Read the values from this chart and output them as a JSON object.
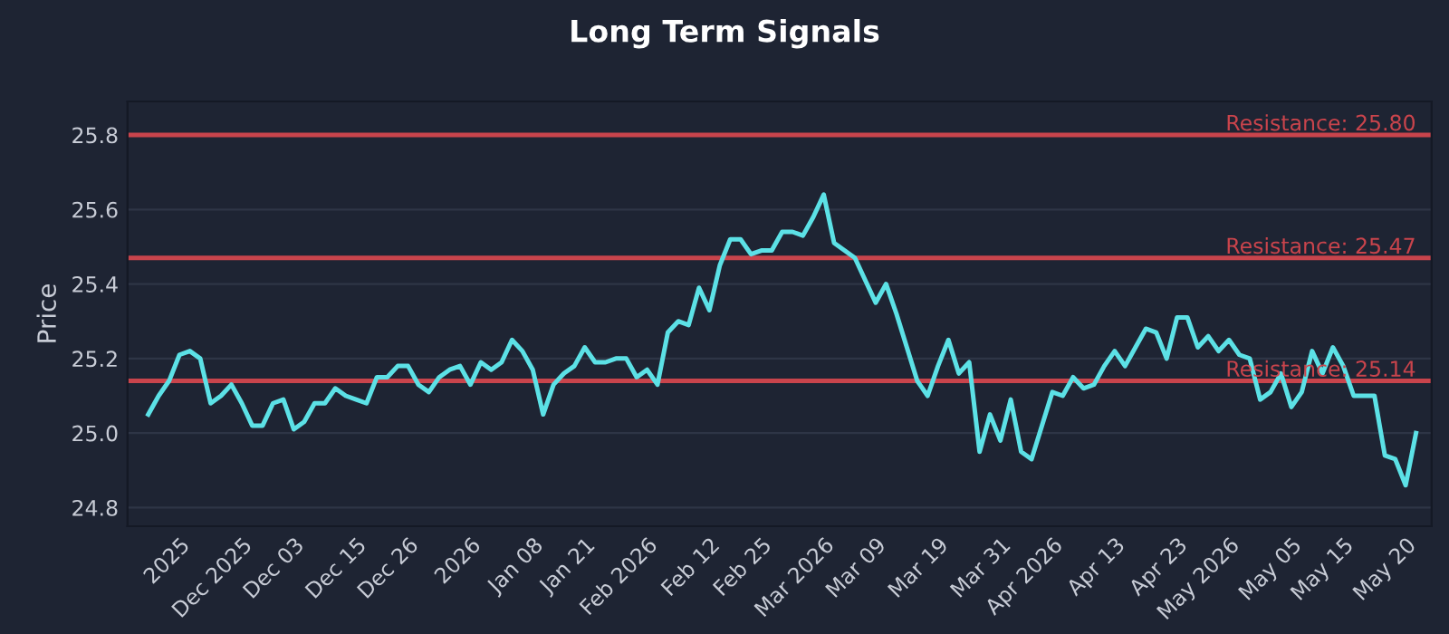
{
  "chart_data": {
    "type": "line",
    "title": "Long Term Signals",
    "ylabel": "Price",
    "categories": [
      null,
      null,
      null,
      "2025",
      null,
      null,
      null,
      null,
      null,
      "Dec 2025",
      null,
      null,
      null,
      null,
      "Dec 03",
      null,
      null,
      null,
      null,
      null,
      "Dec 15",
      null,
      null,
      null,
      null,
      "Dec 26",
      null,
      null,
      null,
      null,
      null,
      "2026",
      null,
      null,
      null,
      null,
      null,
      "Jan 08",
      null,
      null,
      null,
      null,
      "Jan 21",
      null,
      null,
      null,
      null,
      null,
      "Feb 2026",
      null,
      null,
      null,
      null,
      null,
      "Feb 12",
      null,
      null,
      null,
      null,
      "Feb 25",
      null,
      null,
      null,
      null,
      null,
      "Mar 2026",
      null,
      null,
      null,
      null,
      "Mar 09",
      null,
      null,
      null,
      null,
      null,
      "Mar 19",
      null,
      null,
      null,
      null,
      null,
      "Mar 31",
      null,
      null,
      null,
      null,
      "Apr 2026",
      null,
      null,
      null,
      null,
      null,
      "Apr 13",
      null,
      null,
      null,
      null,
      null,
      "Apr 23",
      null,
      null,
      null,
      null,
      "May 2026",
      null,
      null,
      null,
      null,
      null,
      "May 05",
      null,
      null,
      null,
      null,
      "May 15",
      null,
      null,
      null,
      null,
      null,
      "May 20",
      null
    ],
    "series": [
      {
        "color": "#5ce1e6",
        "values": [
          25.05,
          25.1,
          25.14,
          25.21,
          25.22,
          25.2,
          25.08,
          25.1,
          25.13,
          25.08,
          25.02,
          25.02,
          25.08,
          25.09,
          25.01,
          25.03,
          25.08,
          25.08,
          25.12,
          25.1,
          25.09,
          25.08,
          25.15,
          25.15,
          25.18,
          25.18,
          25.13,
          25.11,
          25.15,
          25.17,
          25.18,
          25.13,
          25.19,
          25.17,
          25.19,
          25.25,
          25.22,
          25.17,
          25.05,
          25.13,
          25.16,
          25.18,
          25.23,
          25.19,
          25.19,
          25.2,
          25.2,
          25.15,
          25.17,
          25.13,
          25.27,
          25.3,
          25.29,
          25.39,
          25.33,
          25.45,
          25.52,
          25.52,
          25.48,
          25.49,
          25.49,
          25.54,
          25.54,
          25.53,
          25.58,
          25.64,
          25.51,
          25.49,
          25.47,
          25.41,
          25.35,
          25.4,
          25.32,
          25.23,
          25.14,
          25.1,
          25.18,
          25.25,
          25.16,
          25.19,
          24.95,
          25.05,
          24.98,
          25.09,
          24.95,
          24.93,
          25.02,
          25.11,
          25.1,
          25.15,
          25.12,
          25.13,
          25.18,
          25.22,
          25.18,
          25.23,
          25.28,
          25.27,
          25.2,
          25.31,
          25.31,
          25.23,
          25.26,
          25.22,
          25.25,
          25.21,
          25.2,
          25.09,
          25.11,
          25.16,
          25.07,
          25.11,
          25.22,
          25.16,
          25.23,
          25.18,
          25.1,
          25.1,
          25.1,
          24.94,
          24.93,
          24.86,
          25.0
        ]
      }
    ],
    "ylim": [
      24.75,
      25.89
    ],
    "yticks": [
      24.8,
      {
        "value": 25.0,
        "label": "25.0"
      },
      25.2,
      25.4,
      25.6,
      25.8
    ],
    "grid": "y",
    "ref_lines": [
      {
        "axis": "y",
        "value": 25.8,
        "label": "Resistance: 25.80",
        "color": "#c9444c"
      },
      {
        "axis": "y",
        "value": 25.47,
        "label": "Resistance: 25.47",
        "color": "#c9444c"
      },
      {
        "axis": "y",
        "value": 25.14,
        "label": "Resistance: 25.14",
        "color": "#c9444c"
      }
    ]
  }
}
